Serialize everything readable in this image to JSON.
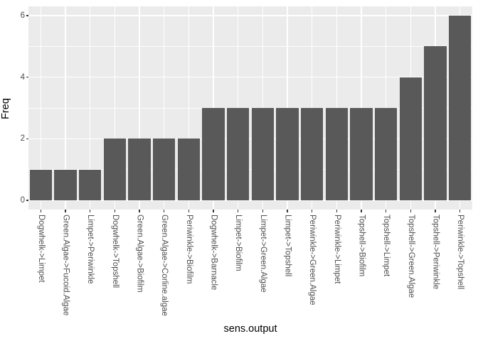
{
  "chart_data": {
    "type": "bar",
    "title": "",
    "xlabel": "sens.output",
    "ylabel": "Freq",
    "categories": [
      "Dogwhelk->Limpet",
      "Green.Algae->Fucoid.Algae",
      "Limpet->Periwinkle",
      "Dogwhelk->Topshell",
      "Green.Algae->Biofilm",
      "Green.Algae->Corline.algae",
      "Periwinkle->Biofilm",
      "Dogwhelk->Barnacle",
      "Limpet->Biofilm",
      "Limpet->Green.Algae",
      "Limpet->Topshell",
      "Periwinkle->Green.Algae",
      "Periwinkle->Limpet",
      "Topshell->Biofilm",
      "Topshell->Limpet",
      "Topshell->Green.Algae",
      "Topshell->Periwinkle",
      "Periwinkle->Topshell"
    ],
    "values": [
      1,
      1,
      1,
      2,
      2,
      2,
      2,
      3,
      3,
      3,
      3,
      3,
      3,
      3,
      3,
      4,
      5,
      6
    ],
    "ylim": [
      0,
      6
    ],
    "yticks": [
      0,
      2,
      4,
      6
    ],
    "yminor": [
      1,
      3,
      5
    ],
    "grid": "major-and-minor-horizontal, major-vertical-per-category",
    "legend": false,
    "bar_width_fraction": 0.9,
    "colors": {
      "figure_bg": "#FFFFFF",
      "panel_bg": "#EBEBEB",
      "bar_fill": "#595959",
      "grid": "#FFFFFF",
      "tick_mark": "#333333",
      "tick_label": "#4D4D4D",
      "axis_title": "#000000"
    }
  }
}
